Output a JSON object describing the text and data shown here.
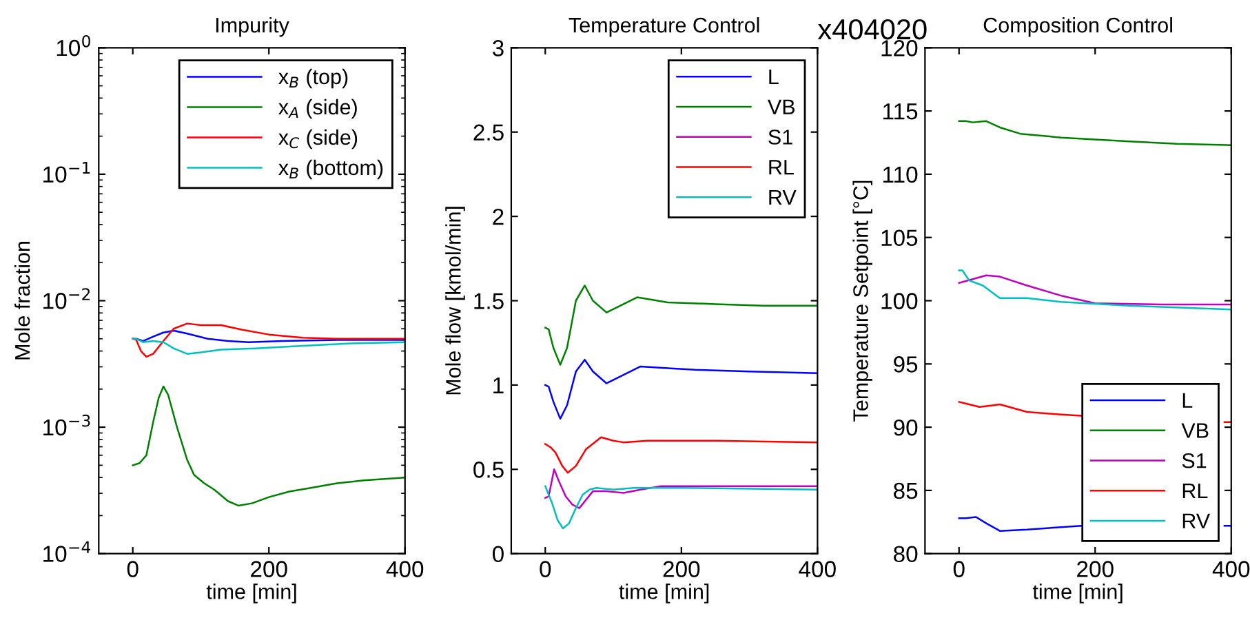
{
  "chart_data": [
    {
      "type": "line",
      "title": "Impurity",
      "xlabel": "time [min]",
      "ylabel": "Mole fraction",
      "log": "y",
      "xlim": [
        -50,
        400
      ],
      "xticks": [
        0,
        200,
        400
      ],
      "ylim": [
        0.0001,
        1
      ],
      "yticks": [
        {
          "value": 0.0001,
          "label": "10$^{−4}$"
        },
        {
          "value": 0.001,
          "label": "10$^{−3}$"
        },
        {
          "value": 0.01,
          "label": "10$^{−2}$"
        },
        {
          "value": 0.1,
          "label": "10$^{−1}$"
        },
        {
          "value": 1,
          "label": "10$^{0}$"
        }
      ],
      "legend": "top right",
      "grid": false,
      "series": [
        {
          "name": "x$_{B}$ (top)",
          "color": "#0000ff",
          "x": [
            0,
            5,
            15,
            30,
            45,
            60,
            80,
            110,
            140,
            170,
            220,
            300,
            400
          ],
          "values": [
            0.005,
            0.005,
            0.0048,
            0.0052,
            0.0056,
            0.0058,
            0.0055,
            0.005,
            0.0048,
            0.0047,
            0.0048,
            0.0049,
            0.0049
          ]
        },
        {
          "name": "x$_{A}$ (side)",
          "color": "#008000",
          "x": [
            0,
            10,
            20,
            30,
            38,
            45,
            52,
            65,
            80,
            90,
            105,
            120,
            140,
            155,
            175,
            200,
            230,
            260,
            300,
            340,
            400
          ],
          "values": [
            0.0005,
            0.00052,
            0.0006,
            0.0011,
            0.0017,
            0.0021,
            0.0018,
            0.001,
            0.00055,
            0.00042,
            0.00036,
            0.00032,
            0.00026,
            0.00024,
            0.00025,
            0.00028,
            0.00031,
            0.00033,
            0.00036,
            0.00038,
            0.0004
          ]
        },
        {
          "name": "x$_{C}$ (side)",
          "color": "#ff0000",
          "x": [
            0,
            5,
            12,
            20,
            30,
            45,
            60,
            80,
            100,
            130,
            160,
            200,
            250,
            300,
            400
          ],
          "values": [
            0.005,
            0.0049,
            0.004,
            0.0036,
            0.0038,
            0.0048,
            0.006,
            0.0066,
            0.0064,
            0.0064,
            0.0059,
            0.0054,
            0.0051,
            0.005,
            0.005
          ]
        },
        {
          "name": "x$_{B}$ (bottom)",
          "color": "#00bfbf",
          "x": [
            0,
            5,
            15,
            30,
            45,
            60,
            80,
            100,
            130,
            180,
            250,
            320,
            400
          ],
          "values": [
            0.005,
            0.005,
            0.0047,
            0.0048,
            0.0047,
            0.0042,
            0.0038,
            0.0039,
            0.0041,
            0.0042,
            0.0044,
            0.0046,
            0.0047
          ]
        }
      ]
    },
    {
      "type": "line",
      "title": "Temperature Control",
      "xlabel": "time [min]",
      "ylabel": "Mole flow [kmol/min]",
      "xlim": [
        -50,
        400
      ],
      "xticks": [
        0,
        200,
        400
      ],
      "ylim": [
        0,
        3
      ],
      "yticks": [
        0,
        0.5,
        1,
        1.5,
        2,
        2.5,
        3
      ],
      "legend": "top right",
      "grid": false,
      "annotations": [
        "x404020"
      ],
      "series": [
        {
          "name": "L",
          "color": "#0000ff",
          "x": [
            0,
            5,
            12,
            22,
            32,
            45,
            58,
            70,
            90,
            110,
            140,
            180,
            220,
            300,
            400
          ],
          "values": [
            1.0,
            0.99,
            0.9,
            0.8,
            0.88,
            1.08,
            1.15,
            1.08,
            1.01,
            1.05,
            1.11,
            1.1,
            1.09,
            1.08,
            1.07
          ]
        },
        {
          "name": "VB",
          "color": "#008000",
          "x": [
            0,
            5,
            12,
            22,
            32,
            45,
            58,
            70,
            90,
            110,
            135,
            180,
            250,
            320,
            400
          ],
          "values": [
            1.34,
            1.33,
            1.22,
            1.12,
            1.22,
            1.5,
            1.59,
            1.5,
            1.43,
            1.47,
            1.52,
            1.49,
            1.48,
            1.47,
            1.47
          ]
        },
        {
          "name": "S1",
          "color": "#bf00bf",
          "x": [
            0,
            5,
            13,
            20,
            30,
            40,
            50,
            60,
            70,
            90,
            115,
            140,
            170,
            250,
            400
          ],
          "values": [
            0.33,
            0.34,
            0.5,
            0.43,
            0.34,
            0.29,
            0.27,
            0.32,
            0.37,
            0.37,
            0.36,
            0.38,
            0.4,
            0.4,
            0.4
          ]
        },
        {
          "name": "RL",
          "color": "#ff0000",
          "x": [
            0,
            8,
            15,
            25,
            33,
            45,
            60,
            82,
            100,
            115,
            150,
            250,
            400
          ],
          "values": [
            0.65,
            0.63,
            0.6,
            0.52,
            0.48,
            0.52,
            0.62,
            0.69,
            0.67,
            0.66,
            0.67,
            0.67,
            0.66
          ]
        },
        {
          "name": "RV",
          "color": "#00bfbf",
          "x": [
            0,
            5,
            10,
            18,
            26,
            35,
            45,
            55,
            65,
            75,
            100,
            130,
            200,
            400
          ],
          "values": [
            0.4,
            0.35,
            0.3,
            0.2,
            0.15,
            0.18,
            0.27,
            0.35,
            0.38,
            0.39,
            0.38,
            0.39,
            0.39,
            0.38
          ]
        }
      ]
    },
    {
      "type": "line",
      "title": "Composition Control",
      "xlabel": "time [min]",
      "ylabel": "Temperature Setpoint [°C]",
      "xlim": [
        -50,
        400
      ],
      "xticks": [
        0,
        200,
        400
      ],
      "ylim": [
        80,
        120
      ],
      "yticks": [
        80,
        85,
        90,
        95,
        100,
        105,
        110,
        115,
        120
      ],
      "legend": "bottom right",
      "grid": false,
      "series": [
        {
          "name": "L",
          "color": "#0000ff",
          "x": [
            0,
            10,
            25,
            40,
            60,
            100,
            150,
            180,
            290,
            390,
            400
          ],
          "values": [
            82.8,
            82.8,
            82.9,
            82.4,
            81.8,
            81.9,
            82.1,
            82.2,
            null,
            82.2,
            82.2
          ]
        },
        {
          "name": "VB",
          "color": "#008000",
          "x": [
            0,
            10,
            20,
            40,
            60,
            90,
            150,
            250,
            320,
            400
          ],
          "values": [
            114.2,
            114.2,
            114.1,
            114.2,
            113.7,
            113.2,
            112.9,
            112.6,
            112.4,
            112.3
          ]
        },
        {
          "name": "S1",
          "color": "#bf00bf",
          "x": [
            0,
            20,
            40,
            60,
            100,
            150,
            200,
            300,
            400
          ],
          "values": [
            101.4,
            101.7,
            102.0,
            101.9,
            101.2,
            100.4,
            99.8,
            99.7,
            99.7
          ]
        },
        {
          "name": "RL",
          "color": "#ff0000",
          "x": [
            0,
            15,
            30,
            45,
            60,
            100,
            150,
            180,
            290,
            390,
            400
          ],
          "values": [
            92.0,
            91.8,
            91.6,
            91.7,
            91.8,
            91.2,
            91.0,
            90.9,
            null,
            90.4,
            90.4
          ]
        },
        {
          "name": "RV",
          "color": "#00bfbf",
          "x": [
            0,
            5,
            15,
            35,
            50,
            60,
            100,
            150,
            250,
            400
          ],
          "values": [
            102.4,
            102.4,
            101.6,
            101.2,
            100.6,
            100.2,
            100.2,
            99.9,
            99.6,
            99.3
          ]
        }
      ]
    }
  ]
}
